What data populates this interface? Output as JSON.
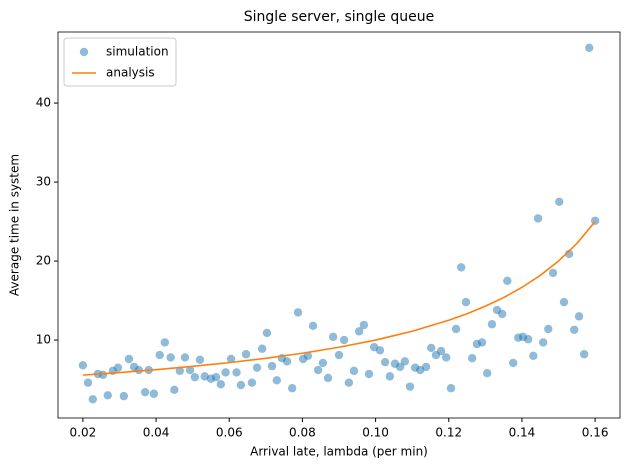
{
  "chart_data": {
    "type": "scatter",
    "title": "Single server, single queue",
    "x_label": "Arrival late, lambda (per min)",
    "y_label": "Average time in system",
    "xlim": [
      0.0132,
      0.1668
    ],
    "ylim": [
      0.13,
      49
    ],
    "xticks": [
      0.02,
      0.04,
      0.06,
      0.08,
      {
        "value": 0.1,
        "label": "0.10"
      },
      0.12,
      0.14,
      0.16
    ],
    "yticks": [
      10,
      20,
      30,
      40
    ],
    "legend": "upper left",
    "series": [
      {
        "name": "simulation",
        "type": "scatter",
        "color": "#1f77b4",
        "x": [
          0.02,
          0.0214,
          0.0227,
          0.0241,
          0.0255,
          0.0268,
          0.0282,
          0.0296,
          0.0312,
          0.0326,
          0.034,
          0.0353,
          0.037,
          0.038,
          0.0394,
          0.041,
          0.0424,
          0.044,
          0.045,
          0.0465,
          0.0479,
          0.0493,
          0.0506,
          0.052,
          0.0533,
          0.055,
          0.0564,
          0.0577,
          0.059,
          0.0605,
          0.062,
          0.0632,
          0.0646,
          0.0662,
          0.0676,
          0.069,
          0.0703,
          0.0717,
          0.073,
          0.0744,
          0.0758,
          0.0772,
          0.0788,
          0.0802,
          0.0815,
          0.0829,
          0.0843,
          0.0856,
          0.087,
          0.0884,
          0.09,
          0.0914,
          0.0927,
          0.0941,
          0.0955,
          0.0968,
          0.0982,
          0.0996,
          0.1012,
          0.1026,
          0.1039,
          0.1053,
          0.1067,
          0.108,
          0.1094,
          0.1108,
          0.1122,
          0.1138,
          0.1152,
          0.1165,
          0.1179,
          0.1193,
          0.1206,
          0.122,
          0.1234,
          0.1247,
          0.1264,
          0.1277,
          0.1291,
          0.1305,
          0.1318,
          0.1332,
          0.1346,
          0.136,
          0.1376,
          0.139,
          0.1403,
          0.1417,
          0.1431,
          0.1444,
          0.1458,
          0.1472,
          0.1485,
          0.1502,
          0.1515,
          0.1529,
          0.1543,
          0.1556,
          0.157,
          0.1584,
          0.16
        ],
        "values": [
          6.8,
          4.6,
          2.5,
          5.7,
          5.6,
          3.0,
          6.1,
          6.5,
          2.9,
          7.6,
          6.6,
          6.2,
          3.4,
          6.2,
          3.2,
          8.1,
          9.7,
          7.8,
          3.7,
          6.1,
          7.8,
          6.2,
          5.3,
          7.5,
          5.4,
          5.1,
          5.3,
          4.4,
          5.9,
          7.6,
          5.9,
          4.3,
          8.2,
          4.6,
          6.5,
          8.9,
          10.9,
          6.7,
          4.9,
          7.7,
          7.3,
          3.9,
          13.5,
          7.6,
          8.0,
          11.8,
          6.2,
          7.1,
          5.2,
          10.4,
          8.1,
          10.0,
          4.6,
          6.1,
          11.1,
          11.9,
          5.7,
          9.1,
          8.7,
          7.2,
          5.4,
          7.0,
          6.6,
          7.3,
          4.1,
          6.5,
          6.2,
          6.6,
          9.0,
          8.1,
          8.6,
          7.8,
          3.9,
          11.4,
          19.2,
          14.8,
          7.7,
          9.5,
          9.7,
          5.8,
          12.0,
          13.8,
          13.3,
          17.5,
          7.1,
          10.3,
          10.4,
          10.1,
          8.0,
          25.4,
          9.7,
          11.4,
          18.5,
          27.5,
          14.8,
          20.9,
          11.3,
          13.0,
          8.2,
          47.0,
          25.1
        ]
      },
      {
        "name": "analysis",
        "type": "line",
        "color": "#ff7f0e",
        "x": [
          0.02,
          0.03,
          0.04,
          0.05,
          0.06,
          0.07,
          0.08,
          0.09,
          0.1,
          0.11,
          0.12,
          0.125,
          0.13,
          0.135,
          0.14,
          0.145,
          0.15,
          0.155,
          0.16
        ],
        "values": [
          5.56,
          5.88,
          6.25,
          6.67,
          7.14,
          7.69,
          8.33,
          9.09,
          10,
          11.11,
          12.5,
          13.33,
          14.29,
          15.38,
          16.67,
          18.18,
          20,
          22.22,
          25
        ]
      }
    ]
  }
}
